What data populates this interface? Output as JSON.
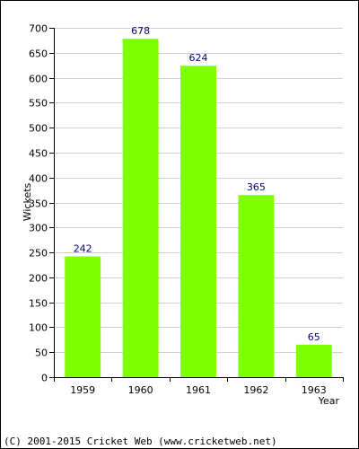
{
  "chart_data": {
    "type": "bar",
    "categories": [
      "1959",
      "1960",
      "1961",
      "1962",
      "1963"
    ],
    "values": [
      242,
      678,
      624,
      365,
      65
    ],
    "title": "",
    "xlabel": "Year",
    "ylabel": "Wickets",
    "ylim": [
      0,
      700
    ],
    "yticks": [
      0,
      50,
      100,
      150,
      200,
      250,
      300,
      350,
      400,
      450,
      500,
      550,
      600,
      650,
      700
    ],
    "grid": true,
    "show_data_labels": true,
    "colors": {
      "bar": "#80ff00",
      "data_label": "#000080",
      "grid": "#d0d0d0",
      "axis": "#000000"
    }
  },
  "footer": {
    "text": "(C) 2001-2015 Cricket Web (www.cricketweb.net)"
  }
}
